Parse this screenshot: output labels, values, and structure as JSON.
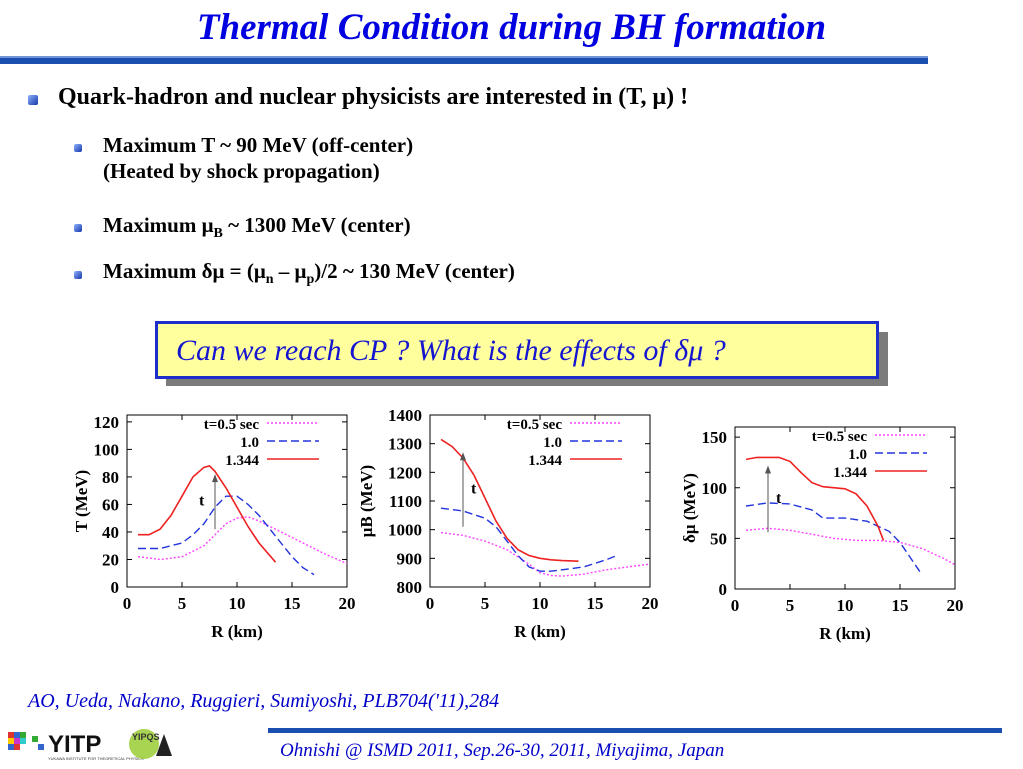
{
  "slide": {
    "title": "Thermal Condition during BH formation",
    "main_bullet": "Quark-hadron and nuclear physicists are interested in (T, μ) !",
    "sub_bullets": [
      {
        "line1": "Maximum T ~ 90 MeV (off-center)",
        "line2": "(Heated by shock propagation)"
      },
      {
        "pre": "Maximum μ",
        "sub": "B",
        "post": " ~ 1300 MeV (center)"
      },
      {
        "pre": "Maximum δμ = (μ",
        "sub1": "n",
        "mid": " – μ",
        "sub2": "p",
        "post": ")/2 ~ 130 MeV (center)"
      }
    ],
    "callout": "Can we reach CP ? What is the effects of δμ ?",
    "citation": "AO, Ueda, Nakano, Ruggieri, Sumiyoshi, PLB704('11),284",
    "footer": "Ohnishi @  ISMD 2011, Sep.26-30, 2011, Miyajima, Japan",
    "logo": {
      "text": "YITP",
      "sub": "YUKAWA INSTITUTE FOR THEORETICAL PHYSICS",
      "badge": "YIPQS"
    }
  },
  "colors": {
    "title": "#0000e0",
    "accent": "#1a4fb0",
    "callout_bg": "#ffff9e",
    "red": "#ee2222",
    "blue": "#2233dd",
    "magenta": "#ff44ff"
  },
  "chart_data": [
    {
      "type": "line",
      "xlabel": "R (km)",
      "ylabel": "T (MeV)",
      "xlim": [
        0,
        20
      ],
      "ylim": [
        0,
        125
      ],
      "xticks": [
        0,
        5,
        10,
        15,
        20
      ],
      "yticks": [
        0,
        20,
        40,
        60,
        80,
        100,
        120
      ],
      "arrow_label": "t",
      "series": [
        {
          "name": "t=0.5 sec",
          "style": "dotted",
          "color": "#ff44ff",
          "x": [
            1,
            3,
            5,
            7,
            8,
            9,
            10,
            11,
            12,
            14,
            16,
            18,
            20
          ],
          "y": [
            22,
            20,
            22,
            30,
            38,
            46,
            50,
            51,
            48,
            40,
            32,
            24,
            17
          ]
        },
        {
          "name": "1.0",
          "style": "dashed",
          "color": "#2233dd",
          "x": [
            1,
            3,
            5,
            6,
            7,
            8,
            9,
            10,
            11,
            12,
            13,
            14,
            15,
            16,
            17
          ],
          "y": [
            28,
            28,
            32,
            38,
            46,
            58,
            66,
            66,
            60,
            52,
            42,
            32,
            22,
            14,
            9
          ]
        },
        {
          "name": "1.344",
          "style": "solid",
          "color": "#ee2222",
          "x": [
            1,
            2,
            3,
            4,
            5,
            6,
            7,
            7.5,
            8,
            9,
            10,
            11,
            12,
            13.5
          ],
          "y": [
            38,
            38,
            42,
            52,
            66,
            80,
            87,
            88,
            84,
            72,
            58,
            44,
            32,
            18
          ]
        }
      ]
    },
    {
      "type": "line",
      "xlabel": "R (km)",
      "ylabel": "μB (MeV)",
      "xlim": [
        0,
        20
      ],
      "ylim": [
        800,
        1400
      ],
      "xticks": [
        0,
        5,
        10,
        15,
        20
      ],
      "yticks": [
        800,
        900,
        1000,
        1100,
        1200,
        1300,
        1400
      ],
      "arrow_label": "t",
      "series": [
        {
          "name": "t=0.5 sec",
          "style": "dotted",
          "color": "#ff44ff",
          "x": [
            1,
            3,
            5,
            7,
            9,
            10,
            11,
            12,
            14,
            16,
            18,
            20
          ],
          "y": [
            990,
            980,
            960,
            930,
            880,
            850,
            840,
            838,
            845,
            860,
            870,
            880
          ]
        },
        {
          "name": "1.0",
          "style": "dashed",
          "color": "#2233dd",
          "x": [
            1,
            3,
            5,
            6,
            7,
            8,
            9,
            10,
            11,
            12,
            14,
            16,
            17
          ],
          "y": [
            1075,
            1065,
            1040,
            1010,
            960,
            910,
            870,
            855,
            855,
            860,
            870,
            895,
            910
          ]
        },
        {
          "name": "1.344",
          "style": "solid",
          "color": "#ee2222",
          "x": [
            1,
            2,
            3,
            4,
            5,
            6,
            7,
            8,
            9,
            10,
            11,
            12,
            13.5
          ],
          "y": [
            1315,
            1290,
            1250,
            1190,
            1110,
            1030,
            970,
            930,
            910,
            900,
            895,
            892,
            890
          ]
        }
      ]
    },
    {
      "type": "line",
      "xlabel": "R (km)",
      "ylabel": "δμ (MeV)",
      "xlim": [
        0,
        20
      ],
      "ylim": [
        0,
        160
      ],
      "xticks": [
        0,
        5,
        10,
        15,
        20
      ],
      "yticks": [
        0,
        50,
        100,
        150
      ],
      "arrow_label": "t",
      "series": [
        {
          "name": "t=0.5 sec",
          "style": "dotted",
          "color": "#ff44ff",
          "x": [
            1,
            3,
            5,
            7,
            9,
            11,
            13,
            15,
            17,
            19,
            20
          ],
          "y": [
            58,
            60,
            58,
            54,
            50,
            48,
            48,
            46,
            40,
            30,
            24
          ]
        },
        {
          "name": "1.0",
          "style": "dashed",
          "color": "#2233dd",
          "x": [
            1,
            3,
            5,
            7,
            8,
            10,
            12,
            14,
            15,
            16,
            17
          ],
          "y": [
            82,
            85,
            84,
            78,
            70,
            70,
            67,
            57,
            46,
            30,
            14
          ]
        },
        {
          "name": "1.344",
          "style": "solid",
          "color": "#ee2222",
          "x": [
            1,
            2,
            4,
            5,
            6,
            7,
            8,
            10,
            11,
            12,
            13,
            13.5
          ],
          "y": [
            128,
            130,
            130,
            126,
            115,
            105,
            101,
            99,
            94,
            82,
            62,
            48
          ]
        }
      ]
    }
  ]
}
